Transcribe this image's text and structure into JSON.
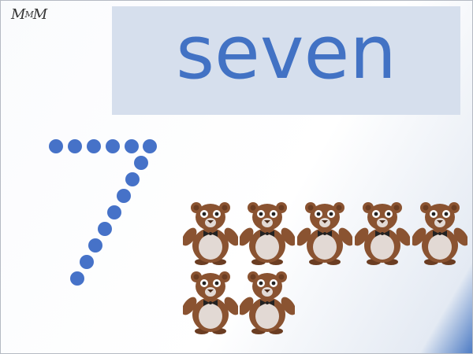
{
  "logo": {
    "main": "M",
    "small": "M",
    "tail": "M"
  },
  "word": {
    "text": "seven"
  },
  "numeral": {
    "digit": "7",
    "dot_color": "#4672c8"
  },
  "counters": {
    "count": 7,
    "icon": "teddy-bear-icon"
  },
  "colors": {
    "panel": "#d6dfed",
    "word": "#4272c4",
    "bear_fur": "#8a5331",
    "bear_dark": "#6b3d22",
    "bear_belly": "#e2d9d4",
    "bow_tie": "#222222"
  }
}
